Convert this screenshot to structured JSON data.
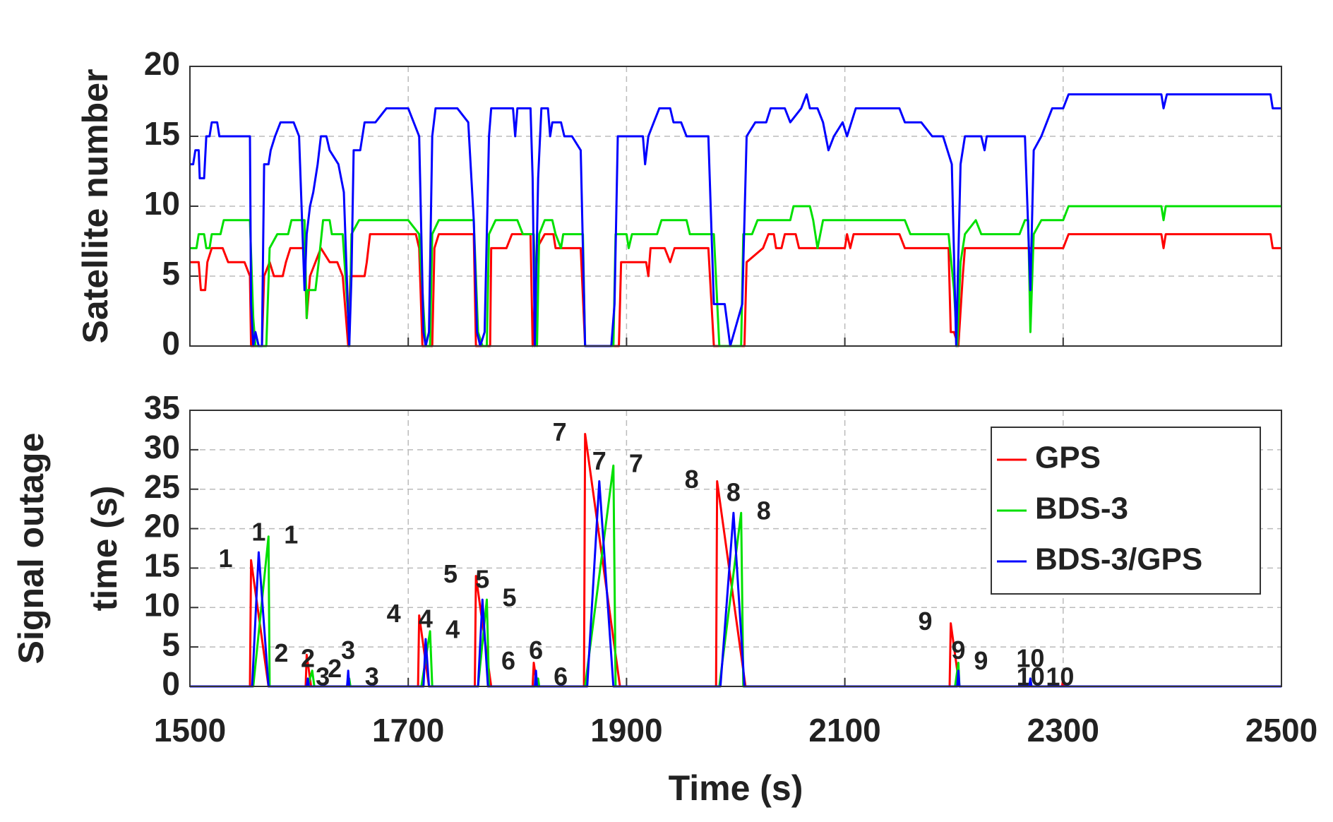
{
  "chart_data": [
    {
      "type": "line",
      "ylabel": "Satellite number",
      "xlim": [
        1500,
        2500
      ],
      "ylim": [
        0,
        20
      ],
      "xticks": [
        1500,
        1700,
        1900,
        2100,
        2300,
        2500
      ],
      "yticks": [
        0,
        5,
        10,
        15,
        20
      ],
      "grid": true,
      "series": [
        {
          "color": "#ff0000",
          "x": [
            1500,
            1508,
            1510,
            1514,
            1516,
            1520,
            1530,
            1535,
            1550,
            1555,
            1556,
            1566,
            1568,
            1573,
            1577,
            1585,
            1588,
            1592,
            1605,
            1607,
            1610,
            1615,
            1620,
            1628,
            1635,
            1640,
            1645,
            1647,
            1660,
            1662,
            1665,
            1707,
            1710,
            1713,
            1722,
            1724,
            1728,
            1760,
            1762,
            1775,
            1776,
            1790,
            1795,
            1812,
            1814,
            1818,
            1825,
            1833,
            1835,
            1858,
            1862,
            1893,
            1895,
            1918,
            1920,
            1922,
            1935,
            1940,
            1944,
            1975,
            1980,
            2008,
            2010,
            2025,
            2030,
            2035,
            2037,
            2042,
            2045,
            2055,
            2058,
            2100,
            2102,
            2105,
            2108,
            2150,
            2155,
            2195,
            2197,
            2200,
            2204,
            2208,
            2210,
            2300,
            2305,
            2390,
            2392,
            2394,
            2490,
            2492,
            2500
          ],
          "values": [
            6,
            6,
            4,
            4,
            6,
            7,
            7,
            6,
            6,
            5,
            0,
            0,
            5,
            6,
            5,
            5,
            6,
            7,
            7,
            2,
            5,
            6,
            7,
            6,
            6,
            5,
            0,
            5,
            5,
            6,
            8,
            8,
            7,
            0,
            0,
            7,
            8,
            8,
            0,
            0,
            7,
            7,
            8,
            8,
            0,
            7,
            8,
            8,
            7,
            7,
            0,
            0,
            6,
            6,
            5,
            7,
            7,
            6,
            7,
            7,
            0,
            0,
            6,
            7,
            8,
            8,
            7,
            7,
            8,
            8,
            7,
            7,
            8,
            7,
            8,
            8,
            7,
            7,
            1,
            1,
            0,
            5,
            7,
            7,
            8,
            8,
            7,
            8,
            8,
            7,
            7
          ]
        },
        {
          "color": "#00e000",
          "x": [
            1500,
            1506,
            1508,
            1513,
            1515,
            1518,
            1520,
            1528,
            1531,
            1555,
            1558,
            1560,
            1570,
            1573,
            1580,
            1590,
            1593,
            1605,
            1607,
            1608,
            1615,
            1618,
            1622,
            1628,
            1630,
            1640,
            1645,
            1646,
            1648,
            1655,
            1700,
            1710,
            1716,
            1720,
            1722,
            1728,
            1760,
            1764,
            1768,
            1772,
            1774,
            1780,
            1800,
            1805,
            1815,
            1818,
            1820,
            1825,
            1832,
            1835,
            1840,
            1842,
            1860,
            1862,
            1888,
            1890,
            1900,
            1902,
            1905,
            1928,
            1932,
            1955,
            1958,
            1980,
            1985,
            2005,
            2007,
            2015,
            2020,
            2050,
            2053,
            2068,
            2071,
            2075,
            2080,
            2100,
            2155,
            2160,
            2195,
            2200,
            2203,
            2206,
            2210,
            2220,
            2225,
            2260,
            2265,
            2268,
            2270,
            2273,
            2280,
            2300,
            2305,
            2390,
            2392,
            2394,
            2500
          ],
          "values": [
            7,
            7,
            8,
            8,
            7,
            7,
            8,
            8,
            9,
            9,
            2,
            0,
            0,
            7,
            8,
            8,
            9,
            9,
            2,
            4,
            4,
            6,
            9,
            9,
            8,
            8,
            2,
            0,
            8,
            9,
            9,
            8,
            0,
            0,
            8,
            9,
            9,
            1,
            0,
            0,
            8,
            9,
            9,
            8,
            8,
            0,
            8,
            9,
            9,
            8,
            7,
            8,
            8,
            0,
            0,
            8,
            8,
            7,
            8,
            8,
            9,
            9,
            8,
            8,
            0,
            0,
            8,
            8,
            9,
            9,
            10,
            10,
            9,
            7,
            9,
            9,
            9,
            8,
            8,
            4,
            0,
            6,
            8,
            9,
            8,
            8,
            9,
            9,
            1,
            8,
            9,
            9,
            10,
            10,
            9,
            10,
            10
          ]
        },
        {
          "color": "#0000ff",
          "x": [
            1500,
            1503,
            1505,
            1508,
            1509,
            1513,
            1515,
            1518,
            1520,
            1525,
            1527,
            1535,
            1555,
            1556,
            1558,
            1560,
            1563,
            1566,
            1568,
            1572,
            1574,
            1578,
            1583,
            1595,
            1600,
            1605,
            1607,
            1610,
            1613,
            1617,
            1620,
            1625,
            1628,
            1636,
            1641,
            1645,
            1646,
            1648,
            1650,
            1656,
            1660,
            1670,
            1680,
            1700,
            1710,
            1714,
            1716,
            1719,
            1722,
            1725,
            1745,
            1755,
            1760,
            1763,
            1766,
            1770,
            1774,
            1776,
            1796,
            1798,
            1800,
            1812,
            1814,
            1816,
            1819,
            1822,
            1828,
            1830,
            1832,
            1840,
            1843,
            1850,
            1858,
            1862,
            1886,
            1889,
            1892,
            1915,
            1917,
            1920,
            1925,
            1930,
            1940,
            1943,
            1950,
            1955,
            1975,
            1980,
            1990,
            1995,
            2006,
            2010,
            2018,
            2028,
            2032,
            2045,
            2050,
            2060,
            2065,
            2068,
            2075,
            2080,
            2085,
            2090,
            2098,
            2102,
            2110,
            2150,
            2155,
            2170,
            2180,
            2190,
            2198,
            2202,
            2206,
            2210,
            2225,
            2228,
            2230,
            2265,
            2270,
            2273,
            2280,
            2285,
            2290,
            2300,
            2305,
            2390,
            2392,
            2395,
            2490,
            2492,
            2500
          ],
          "values": [
            13,
            13,
            14,
            14,
            12,
            12,
            15,
            15,
            16,
            16,
            15,
            15,
            15,
            3,
            0,
            1,
            0,
            0,
            13,
            13,
            14,
            15,
            16,
            16,
            15,
            4,
            8,
            10,
            11,
            13,
            15,
            15,
            14,
            13,
            11,
            2,
            0,
            5,
            14,
            14,
            16,
            16,
            17,
            17,
            15,
            1,
            0,
            1,
            15,
            17,
            17,
            16,
            9,
            1,
            0,
            1,
            15,
            17,
            17,
            15,
            17,
            17,
            12,
            0,
            12,
            17,
            17,
            15,
            16,
            16,
            15,
            15,
            14,
            0,
            0,
            3,
            15,
            15,
            13,
            15,
            16,
            17,
            17,
            16,
            16,
            15,
            15,
            3,
            3,
            0,
            3,
            15,
            16,
            16,
            17,
            17,
            16,
            17,
            18,
            17,
            17,
            16,
            14,
            15,
            16,
            15,
            17,
            17,
            16,
            16,
            15,
            15,
            13,
            0,
            13,
            15,
            15,
            14,
            15,
            15,
            4,
            14,
            15,
            16,
            17,
            17,
            18,
            18,
            17,
            18,
            18,
            17,
            17
          ]
        }
      ]
    },
    {
      "type": "line",
      "xlabel": "Time (s)",
      "ylabel": [
        "Signal outage",
        "time (s)"
      ],
      "xlim": [
        1500,
        2500
      ],
      "ylim": [
        0,
        35
      ],
      "xticks": [
        1500,
        1700,
        1900,
        2100,
        2300,
        2500
      ],
      "yticks": [
        0,
        5,
        10,
        15,
        20,
        25,
        30,
        35
      ],
      "grid": true,
      "legend": "upper right",
      "series": [
        {
          "name": "GPS",
          "color": "#ff0000",
          "x": [
            1500,
            1555,
            1556,
            1572,
            1606,
            1607,
            1611,
            1644,
            1645,
            1646,
            1709,
            1710,
            1719,
            1761,
            1762,
            1776,
            1814,
            1815,
            1818,
            1861,
            1862,
            1894,
            1982,
            1983,
            2009,
            2196,
            2197,
            2205,
            2299,
            2300,
            2301,
            2500
          ],
          "values": [
            0,
            0,
            16,
            0,
            0,
            4,
            0,
            0,
            1,
            0,
            0,
            9,
            0,
            0,
            14,
            0,
            0,
            3,
            0,
            0,
            32,
            0,
            0,
            26,
            0,
            0,
            8,
            0,
            0,
            1,
            0,
            0
          ],
          "peak_labels": [
            "1",
            "2",
            "3",
            "4",
            "5",
            "6",
            "7",
            "8",
            "9",
            "10"
          ]
        },
        {
          "name": "BDS-3",
          "color": "#00e000",
          "x": [
            1500,
            1558,
            1572,
            1573,
            1608,
            1612,
            1614,
            1645,
            1646,
            1647,
            1712,
            1720,
            1722,
            1764,
            1772,
            1774,
            1817,
            1819,
            1820,
            1862,
            1888,
            1890,
            1985,
            2005,
            2007,
            2201,
            2204,
            2205,
            2269,
            2270,
            2271,
            2500
          ],
          "values": [
            0,
            0,
            19,
            0,
            0,
            2,
            0,
            0,
            1,
            0,
            0,
            7,
            0,
            0,
            11,
            0,
            0,
            1,
            0,
            0,
            28,
            0,
            0,
            22,
            0,
            0,
            3,
            0,
            0,
            1,
            0,
            0
          ],
          "peak_labels": [
            "1",
            "2",
            "3",
            "4",
            "5",
            "6",
            "7",
            "8",
            "9",
            "10"
          ]
        },
        {
          "name": "BDS-3/GPS",
          "color": "#0000ff",
          "x": [
            1500,
            1557,
            1563,
            1572,
            1607,
            1608,
            1609,
            1644,
            1645,
            1646,
            1714,
            1716,
            1719,
            1764,
            1768,
            1773,
            1816,
            1817,
            1818,
            1864,
            1875,
            1888,
            1986,
            1998,
            2008,
            2203,
            2204,
            2205,
            2269,
            2270,
            2271,
            2500
          ],
          "values": [
            0,
            0,
            17,
            0,
            0,
            1,
            0,
            0,
            2,
            0,
            0,
            6,
            0,
            0,
            11,
            0,
            0,
            2,
            0,
            0,
            26,
            0,
            0,
            22,
            0,
            0,
            2,
            0,
            0,
            1,
            0,
            0
          ],
          "peak_labels": [
            "1",
            "2",
            "3",
            "4",
            "5",
            "6",
            "7",
            "8",
            "9",
            "10"
          ]
        }
      ]
    }
  ]
}
